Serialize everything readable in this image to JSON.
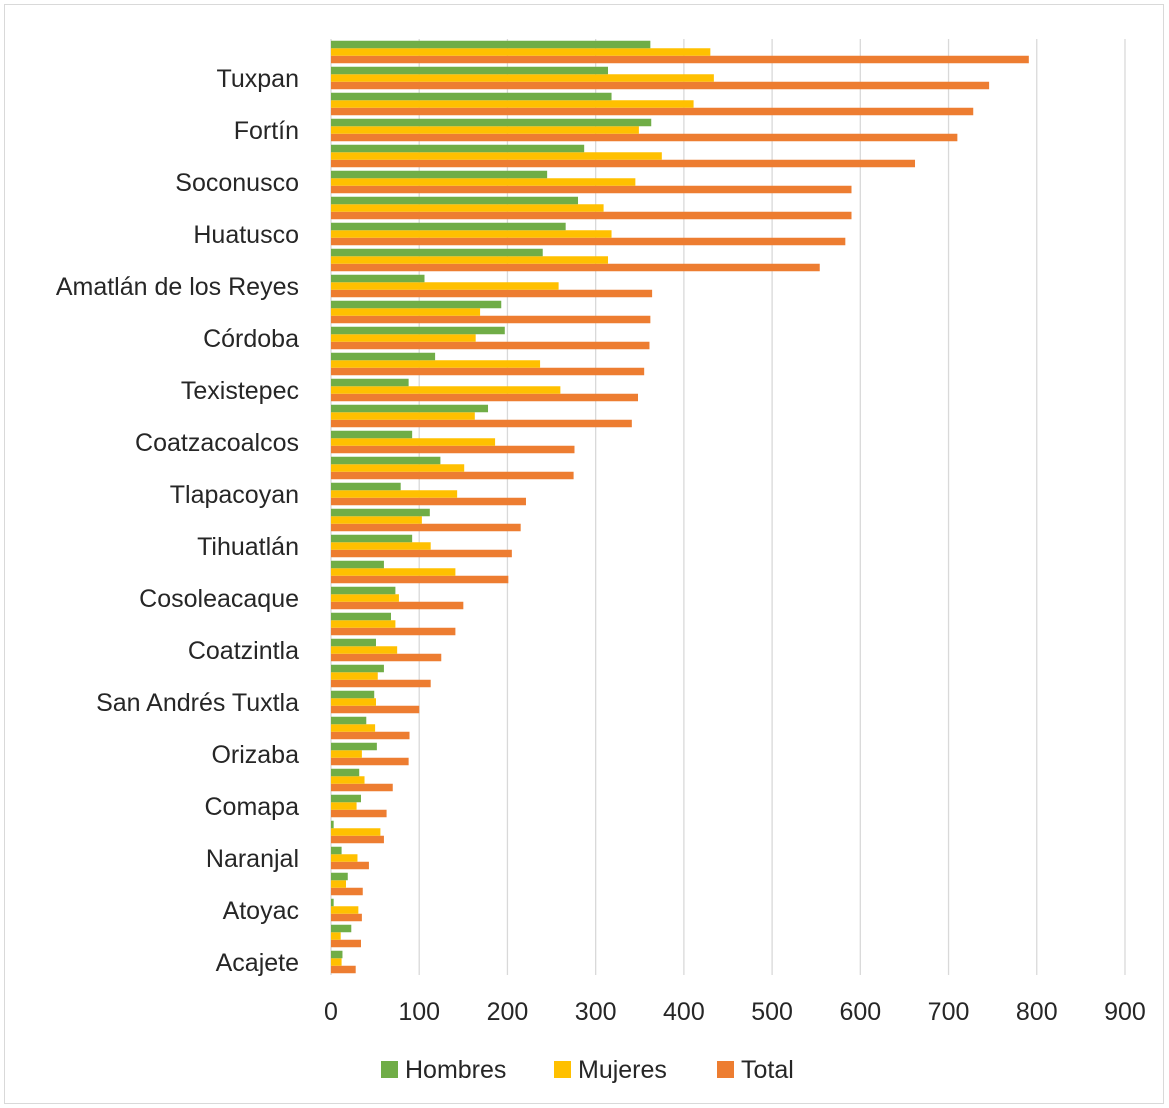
{
  "chart_data": {
    "type": "bar",
    "orientation": "horizontal",
    "title": "",
    "xlabel": "",
    "ylabel": "",
    "xlim": [
      0,
      900
    ],
    "x_ticks": [
      0,
      100,
      200,
      300,
      400,
      500,
      600,
      700,
      800,
      900
    ],
    "grid": "vertical",
    "legend_position": "bottom",
    "categories": [
      "Acajete",
      "",
      "Atoyac",
      "",
      "Naranjal",
      "",
      "Comapa",
      "",
      "Orizaba",
      "",
      "San Andrés Tuxtla",
      "",
      "Coatzintla",
      "",
      "Cosoleacaque",
      "",
      "Tihuatlán",
      "",
      "Tlapacoyan",
      "",
      "Coatzacoalcos",
      "",
      "Texistepec",
      "",
      "Córdoba",
      "",
      "Amatlán de los Reyes",
      "",
      "Huatusco",
      "",
      "Soconusco",
      "",
      "Fortín",
      "",
      "Tuxpan",
      ""
    ],
    "series": [
      {
        "name": "Hombres",
        "color": "#70ad47",
        "values": [
          13,
          23,
          3,
          19,
          12,
          3,
          34,
          32,
          52,
          40,
          49,
          60,
          51,
          68,
          73,
          60,
          92,
          112,
          79,
          124,
          92,
          178,
          88,
          118,
          197,
          193,
          106,
          240,
          266,
          280,
          245,
          287,
          363,
          318,
          314,
          362
        ]
      },
      {
        "name": "Mujeres",
        "color": "#ffc000",
        "values": [
          12,
          11,
          31,
          17,
          30,
          56,
          29,
          38,
          35,
          50,
          51,
          53,
          75,
          73,
          77,
          141,
          113,
          103,
          143,
          151,
          186,
          163,
          260,
          237,
          164,
          169,
          258,
          314,
          318,
          309,
          345,
          375,
          349,
          411,
          434,
          430
        ]
      },
      {
        "name": "Total",
        "color": "#ed7d31",
        "values": [
          28,
          34,
          35,
          36,
          43,
          60,
          63,
          70,
          88,
          89,
          100,
          113,
          125,
          141,
          150,
          201,
          205,
          215,
          221,
          275,
          276,
          341,
          348,
          355,
          361,
          362,
          364,
          554,
          583,
          590,
          590,
          662,
          710,
          728,
          746,
          791
        ]
      }
    ]
  }
}
